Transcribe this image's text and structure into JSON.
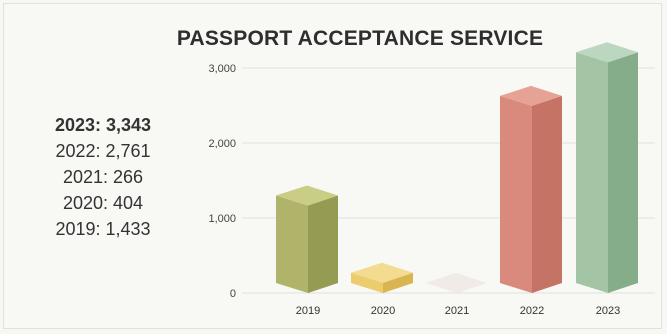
{
  "chart_data": {
    "type": "bar",
    "title": "PASSPORT ACCEPTANCE SERVICE",
    "categories": [
      "2019",
      "2020",
      "2021",
      "2022",
      "2023"
    ],
    "values": [
      1433,
      404,
      266,
      2761,
      3343
    ],
    "ylim": [
      0,
      3000
    ],
    "yticks": [
      0,
      1000,
      2000,
      3000
    ],
    "ytick_labels": [
      "0",
      "1,000",
      "2,000",
      "3,000"
    ],
    "grid": true,
    "colors": {
      "2019": {
        "front": "#b0b46a",
        "side": "#959b52",
        "top": "#c9cd85"
      },
      "2020": {
        "front": "#eccd6e",
        "side": "#d9b552",
        "top": "#f3dc90"
      },
      "2021": {
        "front": "#e6dcd6",
        "side": "#cfc4bd",
        "top": "#f1ebe7"
      },
      "2022": {
        "front": "#d98a7c",
        "side": "#c47364",
        "top": "#e6a294"
      },
      "2023": {
        "front": "#a3c5a6",
        "side": "#86ad8a",
        "top": "#bcd7bf"
      }
    }
  },
  "legend": [
    {
      "label": "2023: 3,343",
      "bold": true
    },
    {
      "label": "2022: 2,761",
      "bold": false
    },
    {
      "label": "2021: 266",
      "bold": false
    },
    {
      "label": "2020: 404",
      "bold": false
    },
    {
      "label": "2019: 1,433",
      "bold": false
    }
  ]
}
